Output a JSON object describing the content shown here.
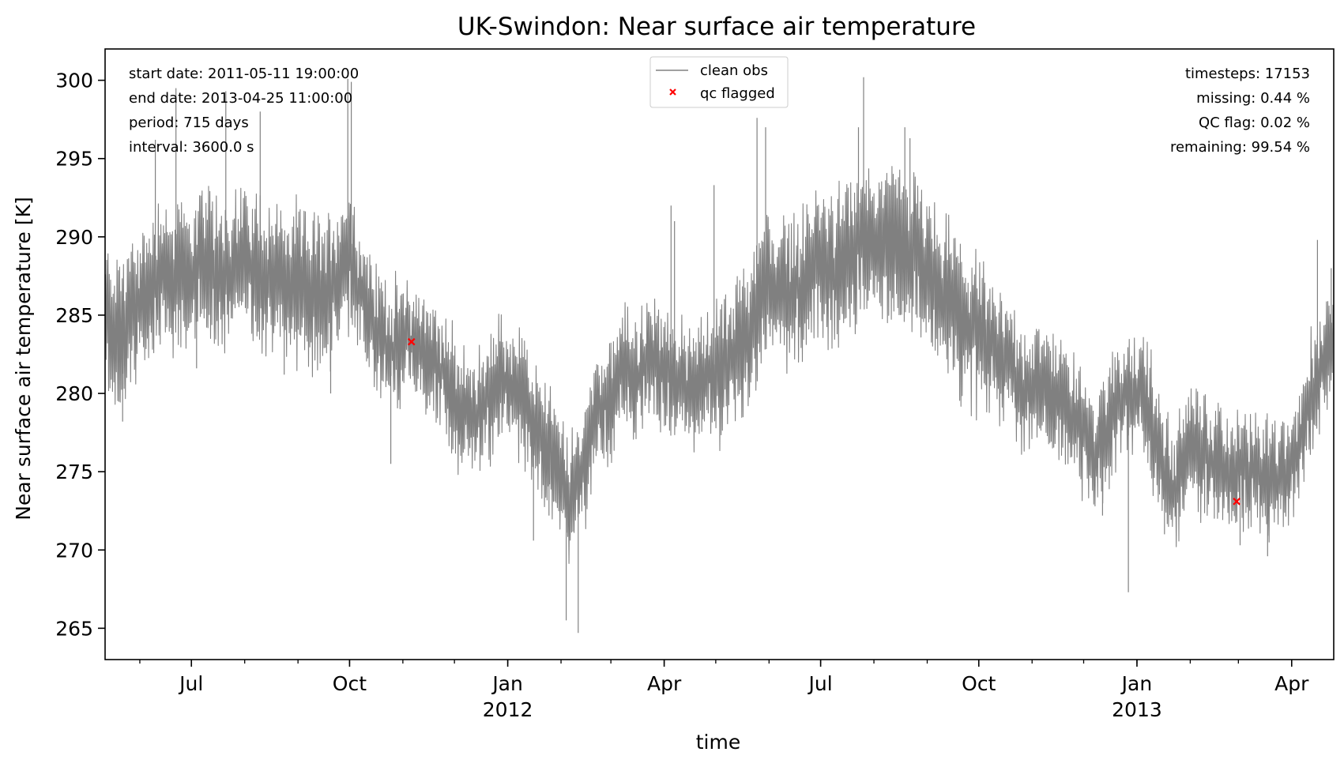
{
  "chart_data": {
    "type": "line",
    "title": "UK-Swindon: Near surface air temperature",
    "xlabel": "time",
    "ylabel": "Near surface air temperature [K]",
    "xlim": [
      "2011-05-11 19:00",
      "2013-04-25 11:00"
    ],
    "ylim": [
      263,
      302
    ],
    "y_ticks": [
      265,
      270,
      275,
      280,
      285,
      290,
      295,
      300
    ],
    "x_ticks": [
      {
        "date": "2011-07-01",
        "label": "Jul",
        "sub": ""
      },
      {
        "date": "2011-10-01",
        "label": "Oct",
        "sub": ""
      },
      {
        "date": "2012-01-01",
        "label": "Jan",
        "sub": "2012"
      },
      {
        "date": "2012-04-01",
        "label": "Apr",
        "sub": ""
      },
      {
        "date": "2012-07-01",
        "label": "Jul",
        "sub": ""
      },
      {
        "date": "2012-10-01",
        "label": "Oct",
        "sub": ""
      },
      {
        "date": "2013-01-01",
        "label": "Jan",
        "sub": "2013"
      },
      {
        "date": "2013-04-01",
        "label": "Apr",
        "sub": ""
      }
    ],
    "grid": false,
    "legend_position": "top-center",
    "series": [
      {
        "name": "clean obs",
        "color": "#808080",
        "style": "line",
        "points": [
          [
            "2011-05-12",
            284.5
          ],
          [
            "2011-05-20",
            284.0
          ],
          [
            "2011-05-28",
            285.0
          ],
          [
            "2011-06-05",
            286.0
          ],
          [
            "2011-06-13",
            288.0
          ],
          [
            "2011-06-21",
            287.0
          ],
          [
            "2011-06-29",
            287.5
          ],
          [
            "2011-07-07",
            288.0
          ],
          [
            "2011-07-15",
            288.0
          ],
          [
            "2011-07-23",
            287.5
          ],
          [
            "2011-07-31",
            288.5
          ],
          [
            "2011-08-08",
            288.0
          ],
          [
            "2011-08-16",
            287.5
          ],
          [
            "2011-08-24",
            287.0
          ],
          [
            "2011-09-01",
            287.0
          ],
          [
            "2011-09-09",
            286.5
          ],
          [
            "2011-09-17",
            286.5
          ],
          [
            "2011-09-25",
            287.5
          ],
          [
            "2011-10-01",
            289.0
          ],
          [
            "2011-10-09",
            286.0
          ],
          [
            "2011-10-17",
            284.0
          ],
          [
            "2011-10-25",
            283.0
          ],
          [
            "2011-11-02",
            283.5
          ],
          [
            "2011-11-10",
            283.0
          ],
          [
            "2011-11-18",
            282.0
          ],
          [
            "2011-11-26",
            281.0
          ],
          [
            "2011-12-04",
            279.0
          ],
          [
            "2011-12-12",
            278.5
          ],
          [
            "2011-12-20",
            279.5
          ],
          [
            "2011-12-28",
            281.0
          ],
          [
            "2012-01-05",
            280.5
          ],
          [
            "2012-01-13",
            278.5
          ],
          [
            "2012-01-21",
            277.5
          ],
          [
            "2012-01-29",
            275.5
          ],
          [
            "2012-02-06",
            273.0
          ],
          [
            "2012-02-14",
            275.5
          ],
          [
            "2012-02-22",
            279.0
          ],
          [
            "2012-03-01",
            280.0
          ],
          [
            "2012-03-09",
            281.5
          ],
          [
            "2012-03-17",
            281.0
          ],
          [
            "2012-03-25",
            282.5
          ],
          [
            "2012-04-02",
            281.0
          ],
          [
            "2012-04-10",
            280.5
          ],
          [
            "2012-04-18",
            280.5
          ],
          [
            "2012-04-26",
            281.0
          ],
          [
            "2012-05-04",
            281.5
          ],
          [
            "2012-05-12",
            282.0
          ],
          [
            "2012-05-20",
            283.5
          ],
          [
            "2012-05-28",
            287.0
          ],
          [
            "2012-06-05",
            286.0
          ],
          [
            "2012-06-13",
            286.5
          ],
          [
            "2012-06-21",
            287.0
          ],
          [
            "2012-06-29",
            288.0
          ],
          [
            "2012-07-07",
            288.0
          ],
          [
            "2012-07-15",
            288.0
          ],
          [
            "2012-07-23",
            290.0
          ],
          [
            "2012-07-31",
            289.5
          ],
          [
            "2012-08-08",
            289.5
          ],
          [
            "2012-08-16",
            290.0
          ],
          [
            "2012-08-24",
            289.0
          ],
          [
            "2012-09-01",
            287.5
          ],
          [
            "2012-09-09",
            286.5
          ],
          [
            "2012-09-17",
            285.5
          ],
          [
            "2012-09-25",
            284.0
          ],
          [
            "2012-10-03",
            284.0
          ],
          [
            "2012-10-11",
            282.5
          ],
          [
            "2012-10-19",
            282.0
          ],
          [
            "2012-10-27",
            280.5
          ],
          [
            "2012-11-04",
            280.0
          ],
          [
            "2012-11-12",
            280.5
          ],
          [
            "2012-11-20",
            279.5
          ],
          [
            "2012-11-28",
            277.5
          ],
          [
            "2012-12-06",
            276.5
          ],
          [
            "2012-12-14",
            277.5
          ],
          [
            "2012-12-22",
            279.5
          ],
          [
            "2012-12-30",
            280.0
          ],
          [
            "2013-01-07",
            279.5
          ],
          [
            "2013-01-15",
            275.5
          ],
          [
            "2013-01-23",
            273.5
          ],
          [
            "2013-01-31",
            277.0
          ],
          [
            "2013-02-08",
            276.0
          ],
          [
            "2013-02-16",
            275.5
          ],
          [
            "2013-02-24",
            274.5
          ],
          [
            "2013-03-04",
            275.5
          ],
          [
            "2013-03-12",
            275.0
          ],
          [
            "2013-03-20",
            274.5
          ],
          [
            "2013-03-28",
            274.5
          ],
          [
            "2013-04-05",
            276.5
          ],
          [
            "2013-04-13",
            280.0
          ],
          [
            "2013-04-21",
            282.5
          ],
          [
            "2013-04-25",
            283.0
          ]
        ],
        "extremes": [
          [
            "2011-05-22",
            278.2
          ],
          [
            "2011-06-10",
            296.2
          ],
          [
            "2011-06-22",
            299.5
          ],
          [
            "2011-07-04",
            281.6
          ],
          [
            "2011-07-21",
            299.3
          ],
          [
            "2011-08-10",
            298.0
          ],
          [
            "2011-08-24",
            281.2
          ],
          [
            "2011-09-20",
            280.0
          ],
          [
            "2011-09-30",
            300.1
          ],
          [
            "2011-10-02",
            299.9
          ],
          [
            "2011-10-25",
            275.5
          ],
          [
            "2011-12-10",
            276.5
          ],
          [
            "2012-01-16",
            270.6
          ],
          [
            "2012-01-25",
            272.2
          ],
          [
            "2012-02-04",
            265.5
          ],
          [
            "2012-02-11",
            264.7
          ],
          [
            "2012-04-05",
            292.0
          ],
          [
            "2012-04-07",
            291.0
          ],
          [
            "2012-04-30",
            293.3
          ],
          [
            "2012-05-25",
            297.6
          ],
          [
            "2012-05-30",
            297.0
          ],
          [
            "2012-07-23",
            297.0
          ],
          [
            "2012-07-26",
            300.2
          ],
          [
            "2012-08-19",
            297.0
          ],
          [
            "2012-08-22",
            296.3
          ],
          [
            "2012-11-14",
            277.8
          ],
          [
            "2012-12-12",
            272.2
          ],
          [
            "2012-12-27",
            267.3
          ],
          [
            "2013-01-17",
            271.0
          ],
          [
            "2013-02-15",
            272.0
          ],
          [
            "2013-03-02",
            270.3
          ],
          [
            "2013-03-18",
            269.6
          ],
          [
            "2013-04-16",
            289.8
          ],
          [
            "2013-04-24",
            288.0
          ]
        ]
      },
      {
        "name": "qc flagged",
        "color": "#ff0000",
        "style": "marker-x",
        "points": [
          [
            "2011-11-06",
            283.3
          ],
          [
            "2013-02-28",
            273.1
          ]
        ]
      }
    ],
    "stats_left": [
      "start date: 2011-05-11 19:00:00",
      "end date: 2013-04-25 11:00:00",
      "period: 715 days",
      "interval: 3600.0 s"
    ],
    "stats_right": [
      "timesteps: 17153",
      "missing: 0.44 %",
      "QC flag: 0.02 %",
      "remaining: 99.54 %"
    ]
  }
}
